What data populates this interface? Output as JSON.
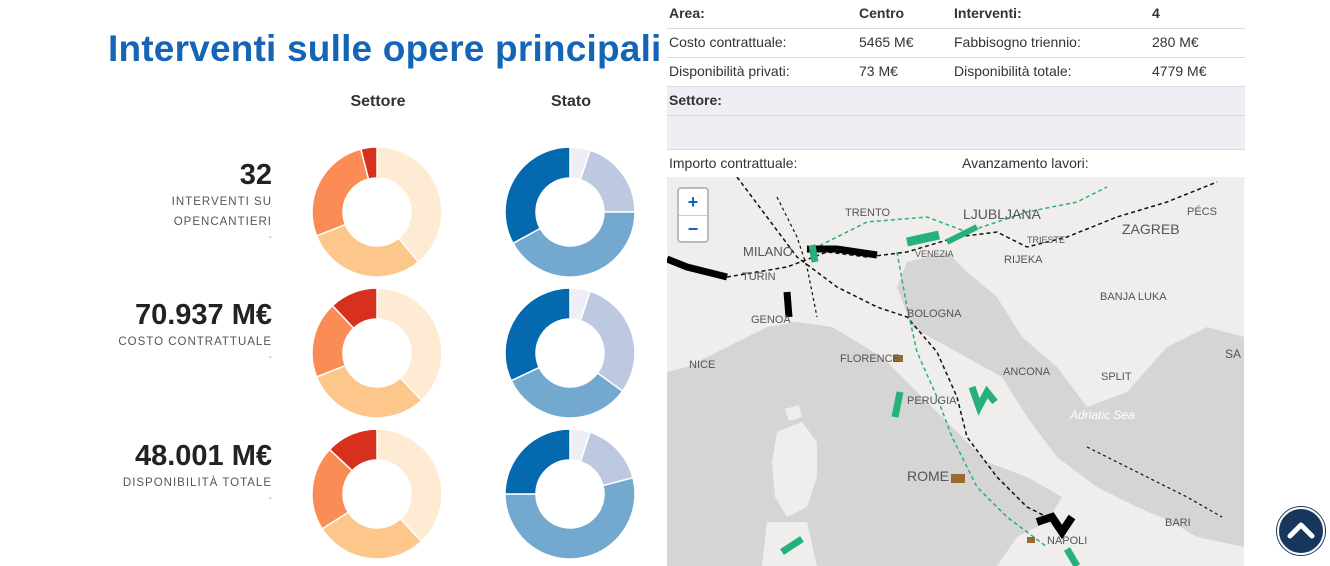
{
  "title": "Interventi sulle opere principali",
  "columns": {
    "settore": "Settore",
    "stato": "Stato"
  },
  "kpis": [
    {
      "value": "32",
      "label1": "INTERVENTI SU",
      "label2": "OPENCANTIERI",
      "footnote": "-"
    },
    {
      "value": "70.937 M€",
      "label1": "COSTO CONTRATTUALE",
      "label2": "",
      "footnote": "-"
    },
    {
      "value": "48.001 M€",
      "label1": "DISPONIBILITÀ TOTALE",
      "label2": "",
      "footnote": "-"
    }
  ],
  "colors": {
    "settore": [
      "#fdebd3",
      "#fdc78b",
      "#fb8c55",
      "#d7301f"
    ],
    "stato": [
      "#efedf6",
      "#bdc9e1",
      "#74a9cf",
      "#0569b0"
    ]
  },
  "donuts": {
    "settore": [
      [
        0.39,
        0.3,
        0.27,
        0.04
      ],
      [
        0.38,
        0.31,
        0.19,
        0.12
      ],
      [
        0.38,
        0.28,
        0.21,
        0.13
      ]
    ],
    "stato": [
      [
        0.05,
        0.2,
        0.42,
        0.33
      ],
      [
        0.05,
        0.3,
        0.33,
        0.32
      ],
      [
        0.05,
        0.16,
        0.54,
        0.25
      ]
    ]
  },
  "info": {
    "area_label": "Area:",
    "area_value": "Centro",
    "interventi_label": "Interventi:",
    "interventi_value": "4",
    "costo_label": "Costo contrattuale:",
    "costo_value": "5465 M€",
    "fabbisogno_label": "Fabbisogno triennio:",
    "fabbisogno_value": "280 M€",
    "privati_label": "Disponibilità privati:",
    "privati_value": "73 M€",
    "totale_label": "Disponibilità totale:",
    "totale_value": "4779 M€",
    "settore_label": "Settore:",
    "importo_label": "Importo contrattuale:",
    "avanzamento_label": "Avanzamento lavori:"
  },
  "map": {
    "zoom_in": "+",
    "zoom_out": "−",
    "cities": [
      "TRENTO",
      "LJUBLJANA",
      "ZAGREB",
      "PÉCS",
      "MILANO",
      "TURIN",
      "RIJEKA",
      "BANJA LUKA",
      "GENOA",
      "BOLOGNA",
      "NICE",
      "FLORENCE",
      "ANCONA",
      "SPLIT",
      "PERUGIA",
      "Adriatic Sea",
      "ROME",
      "BARI",
      "NAPOLI",
      "SA",
      "VENEZIA",
      "TRIESTE"
    ]
  }
}
